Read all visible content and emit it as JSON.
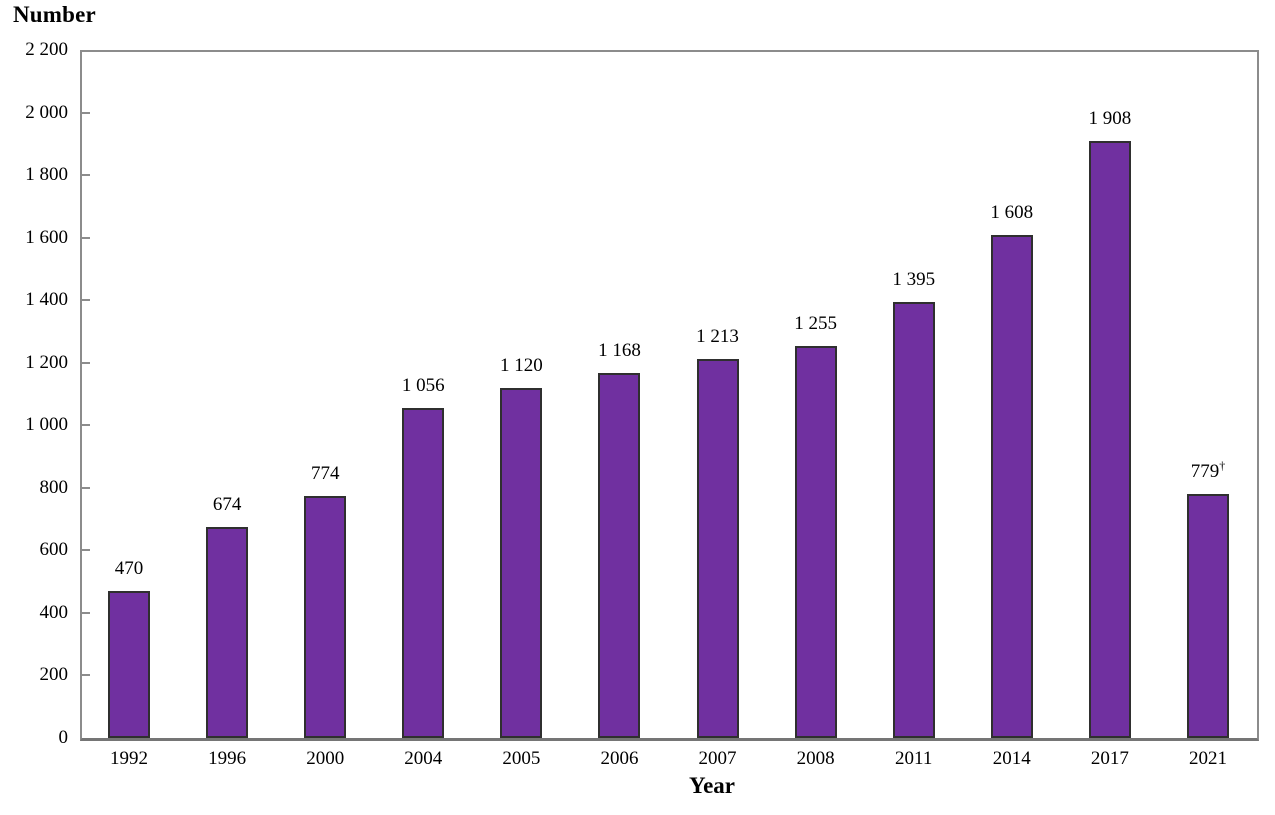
{
  "chart_data": {
    "type": "bar",
    "title": "Number",
    "xlabel": "Year",
    "ylabel": "Number",
    "categories": [
      "1992",
      "1996",
      "2000",
      "2004",
      "2005",
      "2006",
      "2007",
      "2008",
      "2011",
      "2014",
      "2017",
      "2021"
    ],
    "values": [
      470,
      674,
      774,
      1056,
      1120,
      1168,
      1213,
      1255,
      1395,
      1608,
      1908,
      779
    ],
    "value_labels": [
      "470",
      "674",
      "774",
      "1 056",
      "1 120",
      "1 168",
      "1 213",
      "1 255",
      "1 395",
      "1 608",
      "1 908",
      "779"
    ],
    "value_label_suffixes": [
      "",
      "",
      "",
      "",
      "",
      "",
      "",
      "",
      "",
      "",
      "",
      "†"
    ],
    "ylim": [
      0,
      2200
    ],
    "ytick_step": 200,
    "ytick_labels": [
      "0",
      "200",
      "400",
      "600",
      "800",
      "1 000",
      "1 200",
      "1 400",
      "1 600",
      "1 800",
      "2 000",
      "2 200"
    ],
    "grid": false,
    "legend": "none",
    "bar_color": "#7030A0",
    "bar_border_color": "#2f2f2f",
    "axis_color": "#8c8c8c",
    "baseline_color": "#757575",
    "text_color": "#000000"
  }
}
